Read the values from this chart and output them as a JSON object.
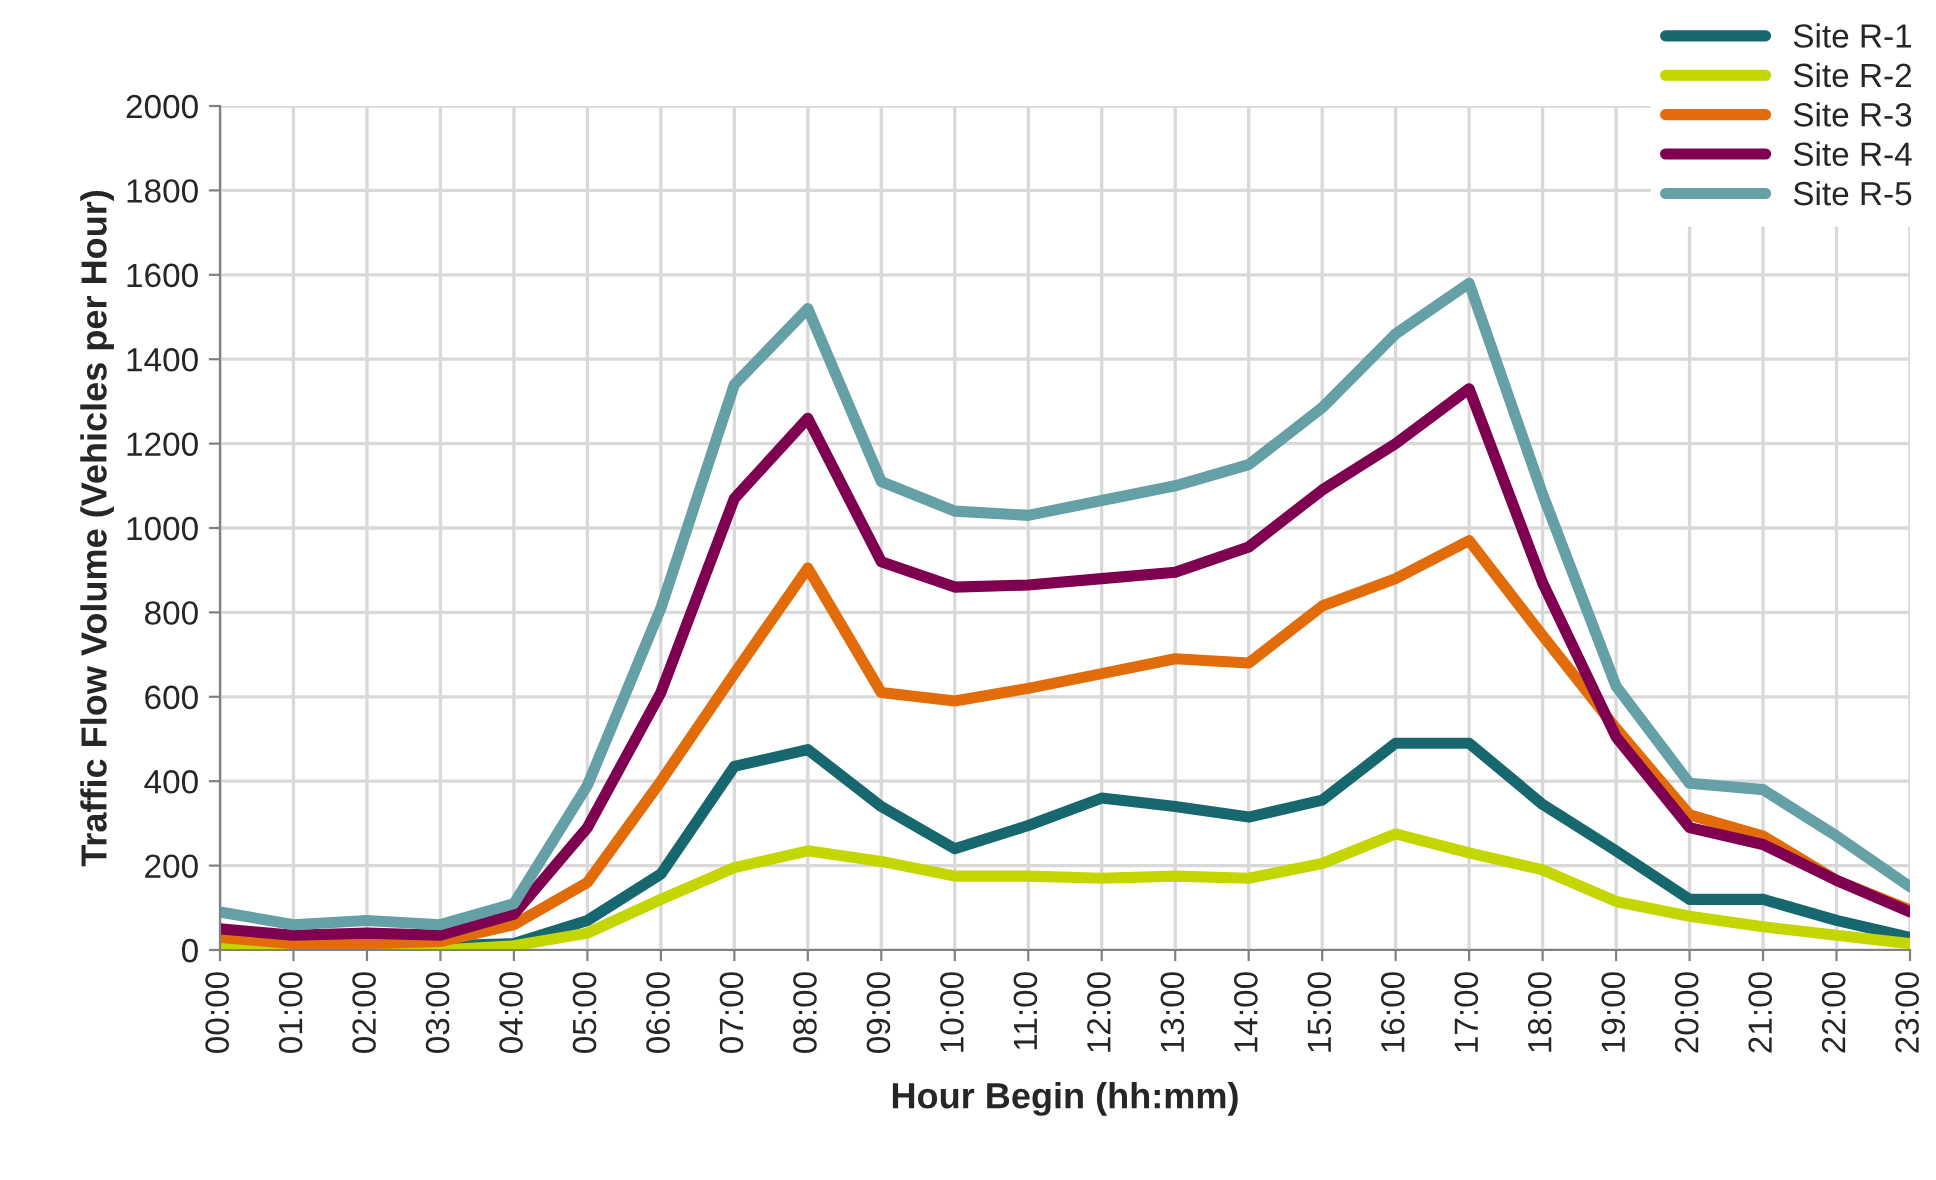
{
  "chart_data": {
    "type": "line",
    "xlabel": "Hour Begin (hh:mm)",
    "ylabel": "Traffic Flow Volume (Vehicles per Hour)",
    "categories": [
      "00:00",
      "01:00",
      "02:00",
      "03:00",
      "04:00",
      "05:00",
      "06:00",
      "07:00",
      "08:00",
      "09:00",
      "10:00",
      "11:00",
      "12:00",
      "13:00",
      "14:00",
      "15:00",
      "16:00",
      "17:00",
      "18:00",
      "19:00",
      "20:00",
      "21:00",
      "22:00",
      "23:00"
    ],
    "series": [
      {
        "name": "Site R-1",
        "color": "#17676e",
        "values": [
          20,
          10,
          10,
          10,
          15,
          70,
          180,
          435,
          475,
          340,
          240,
          295,
          360,
          340,
          315,
          355,
          490,
          490,
          345,
          235,
          120,
          120,
          70,
          30
        ]
      },
      {
        "name": "Site R-2",
        "color": "#c3d600",
        "values": [
          10,
          0,
          0,
          0,
          10,
          40,
          120,
          195,
          235,
          210,
          175,
          175,
          170,
          175,
          170,
          205,
          275,
          230,
          190,
          115,
          80,
          55,
          35,
          15
        ]
      },
      {
        "name": "Site R-3",
        "color": "#e36c0a",
        "values": [
          30,
          15,
          15,
          20,
          60,
          160,
          400,
          655,
          905,
          610,
          590,
          620,
          655,
          690,
          680,
          815,
          880,
          970,
          745,
          525,
          320,
          270,
          165,
          95
        ]
      },
      {
        "name": "Site R-4",
        "color": "#7f0050",
        "values": [
          50,
          35,
          40,
          35,
          85,
          290,
          610,
          1070,
          1260,
          920,
          860,
          865,
          880,
          895,
          955,
          1090,
          1200,
          1330,
          870,
          505,
          290,
          250,
          165,
          90
        ]
      },
      {
        "name": "Site R-5",
        "color": "#65a0a6",
        "values": [
          90,
          60,
          70,
          60,
          110,
          390,
          810,
          1340,
          1520,
          1110,
          1040,
          1030,
          1065,
          1100,
          1150,
          1285,
          1460,
          1580,
          1080,
          625,
          395,
          380,
          270,
          150
        ]
      }
    ],
    "ylim": [
      0,
      2000
    ],
    "yticks": [
      0,
      200,
      400,
      600,
      800,
      1000,
      1200,
      1400,
      1600,
      1800,
      2000
    ],
    "grid": true,
    "legend": "top right",
    "marker": "none",
    "line_style": "solid"
  }
}
